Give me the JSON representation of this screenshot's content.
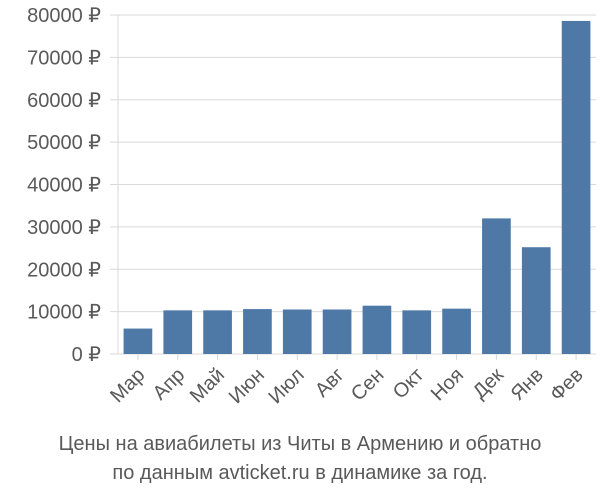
{
  "chart_data": {
    "type": "bar",
    "categories": [
      "Мар",
      "Апр",
      "Май",
      "Июн",
      "Июл",
      "Авг",
      "Сен",
      "Окт",
      "Ноя",
      "Дек",
      "Янв",
      "Фев"
    ],
    "values": [
      6000,
      10300,
      10300,
      10600,
      10500,
      10500,
      11400,
      10300,
      10700,
      32000,
      25200,
      78600
    ],
    "y_ticks": [
      "0 ₽",
      "10000 ₽",
      "20000 ₽",
      "30000 ₽",
      "40000 ₽",
      "50000 ₽",
      "60000 ₽",
      "70000 ₽",
      "80000 ₽"
    ],
    "ylim": [
      0,
      80000
    ],
    "grid": true,
    "bar_color": "#4e79a7"
  },
  "caption": {
    "line1": "Цены на авиабилеты из Читы в Армению и обратно",
    "line2": "по данным avticket.ru в динамике за год."
  }
}
